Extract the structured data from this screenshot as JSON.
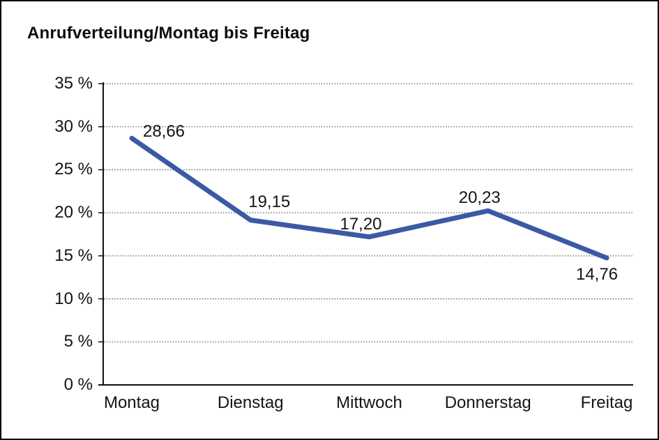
{
  "chart_data": {
    "type": "line",
    "title": "Anrufverteilung/Montag bis Freitag",
    "categories": [
      "Montag",
      "Dienstag",
      "Mittwoch",
      "Donnerstag",
      "Freitag"
    ],
    "values": [
      28.66,
      19.15,
      17.2,
      20.23,
      14.76
    ],
    "value_labels": [
      "28,66",
      "19,15",
      "17,20",
      "20,23",
      "14,76"
    ],
    "value_label_positions": [
      "right",
      "above",
      "above",
      "above",
      "below"
    ],
    "xlabel": "",
    "ylabel": "",
    "ylim": [
      0,
      35
    ],
    "y_tick_step": 5,
    "y_tick_labels": [
      "0 %",
      "5 %",
      "10 %",
      "15 %",
      "20 %",
      "25 %",
      "30 %",
      "35 %"
    ],
    "grid": "horizontal-dotted",
    "legend": "none",
    "colors": {
      "line": "#3B5AA5",
      "axis": "#111111",
      "gridline": "#5a5a5a",
      "text": "#141414",
      "background": "#ffffff"
    }
  }
}
